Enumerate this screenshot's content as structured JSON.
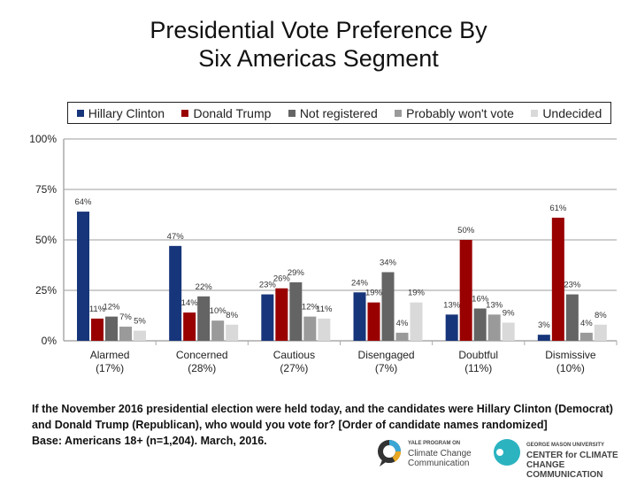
{
  "chart_data": {
    "type": "bar",
    "title": "Presidential Vote Preference By Six Americas Segment",
    "title_lines": [
      "Presidential Vote Preference By",
      "Six Americas Segment"
    ],
    "categories": [
      "Alarmed",
      "Concerned",
      "Cautious",
      "Disengaged",
      "Doubtful",
      "Dismissive"
    ],
    "category_sublabels": [
      "(17%)",
      "(28%)",
      "(27%)",
      "(7%)",
      "(11%)",
      "(10%)"
    ],
    "series": [
      {
        "name": "Hillary Clinton",
        "color": "#17357a",
        "values": [
          64,
          47,
          23,
          24,
          13,
          3
        ]
      },
      {
        "name": "Donald Trump",
        "color": "#990000",
        "values": [
          11,
          14,
          26,
          19,
          50,
          61
        ]
      },
      {
        "name": "Not registered",
        "color": "#646464",
        "values": [
          12,
          22,
          29,
          34,
          16,
          23
        ]
      },
      {
        "name": "Probably won't vote",
        "color": "#9a9a9a",
        "values": [
          7,
          10,
          12,
          4,
          13,
          4
        ]
      },
      {
        "name": "Undecided",
        "color": "#d9d9d9",
        "values": [
          5,
          8,
          11,
          19,
          9,
          8
        ]
      }
    ],
    "ylim": [
      0,
      100
    ],
    "yticks": [
      "0%",
      "25%",
      "50%",
      "75%",
      "100%"
    ],
    "value_suffix": "%",
    "grid": true,
    "legend": "top"
  },
  "footnote": {
    "question": "If the November 2016 presidential election were held today, and the candidates were Hillary Clinton (Democrat) and Donald Trump (Republican), who would you vote for? [Order of candidate names randomized]",
    "base": "Base: Americans 18+ (n=1,204). March, 2016."
  },
  "logos": {
    "yale": [
      "YALE PROGRAM ON",
      "Climate Change",
      "Communication"
    ],
    "gmu": [
      "GEORGE MASON UNIVERSITY",
      "CENTER for CLIMATE CHANGE",
      "COMMUNICATION"
    ]
  }
}
